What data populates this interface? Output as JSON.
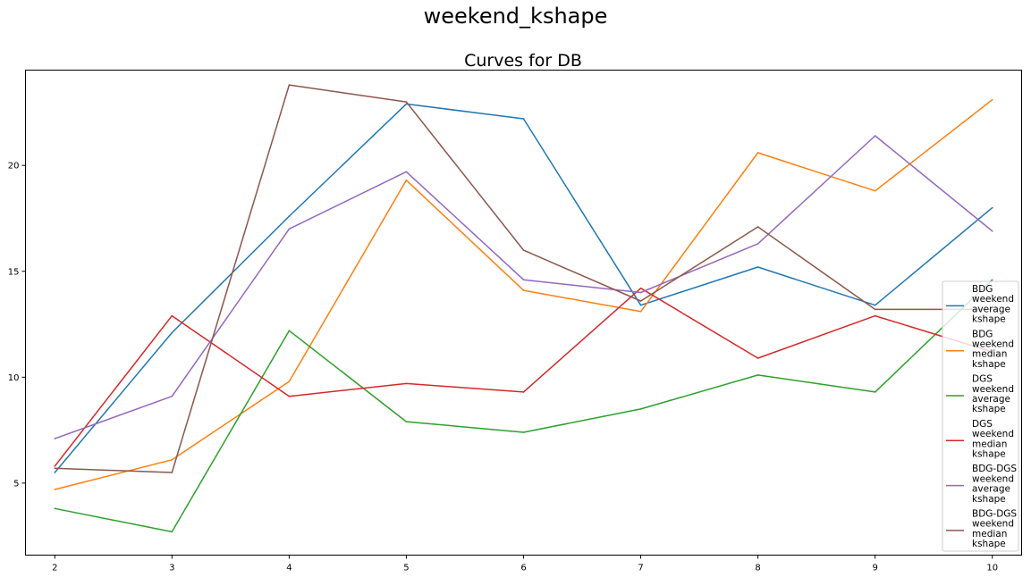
{
  "figure": {
    "suptitle": "weekend_kshape"
  },
  "chart_data": {
    "type": "line",
    "title": "Curves for DB",
    "xlabel": "",
    "ylabel": "",
    "x": [
      2,
      3,
      4,
      5,
      6,
      7,
      8,
      9,
      10
    ],
    "xlim": [
      1.75,
      10.25
    ],
    "ylim": [
      1.6,
      24.5
    ],
    "xticks": [
      2,
      3,
      4,
      5,
      6,
      7,
      8,
      9,
      10
    ],
    "yticks": [
      5,
      10,
      15,
      20
    ],
    "grid": false,
    "legend_position": "lower-right",
    "series": [
      {
        "name": "BDG weekend average kshape",
        "legend_lines": [
          "BDG",
          "weekend",
          "average",
          "kshape"
        ],
        "color": "#1f77b4",
        "values": [
          5.5,
          12.1,
          17.6,
          22.9,
          22.2,
          13.4,
          15.2,
          13.4,
          18.0
        ]
      },
      {
        "name": "BDG weekend median kshape",
        "legend_lines": [
          "BDG",
          "weekend",
          "median",
          "kshape"
        ],
        "color": "#ff7f0e",
        "values": [
          4.7,
          6.1,
          9.8,
          19.3,
          14.1,
          13.1,
          20.6,
          18.8,
          23.1
        ]
      },
      {
        "name": "DGS weekend average kshape",
        "legend_lines": [
          "DGS",
          "weekend",
          "average",
          "kshape"
        ],
        "color": "#2ca02c",
        "values": [
          3.8,
          2.7,
          12.2,
          7.9,
          7.4,
          8.5,
          10.1,
          9.3,
          14.6
        ]
      },
      {
        "name": "DGS weekend median kshape",
        "legend_lines": [
          "DGS",
          "weekend",
          "median",
          "kshape"
        ],
        "color": "#d62728",
        "values": [
          5.8,
          12.9,
          9.1,
          9.7,
          9.3,
          14.2,
          10.9,
          12.9,
          11.2
        ]
      },
      {
        "name": "BDG-DGS weekend average kshape",
        "legend_lines": [
          "BDG-DGS",
          "weekend",
          "average",
          "kshape"
        ],
        "color": "#9467bd",
        "values": [
          7.1,
          9.1,
          17.0,
          19.7,
          14.6,
          14.0,
          16.3,
          21.4,
          16.9
        ]
      },
      {
        "name": "BDG-DGS weekend median kshape",
        "legend_lines": [
          "BDG-DGS",
          "weekend",
          "median",
          "kshape"
        ],
        "color": "#8c564b",
        "values": [
          5.7,
          5.5,
          23.8,
          23.0,
          16.0,
          13.6,
          17.1,
          13.2,
          13.2
        ]
      }
    ]
  }
}
